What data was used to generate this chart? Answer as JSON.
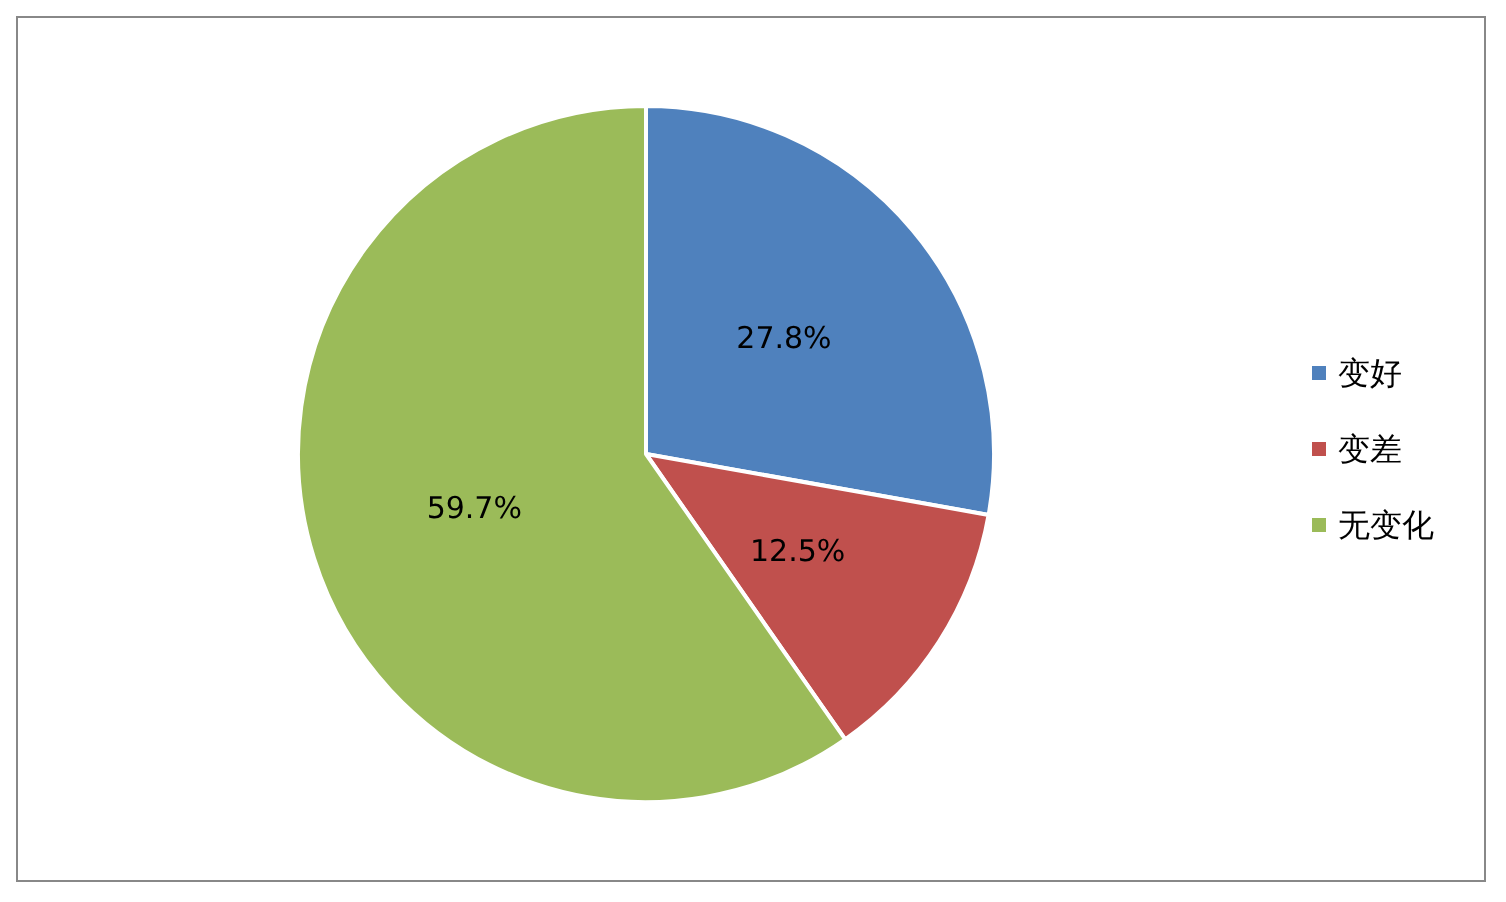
{
  "chart_data": {
    "type": "pie",
    "categories": [
      "变好",
      "变差",
      "无变化"
    ],
    "values": [
      27.8,
      12.5,
      59.7
    ],
    "colors": [
      "#4f81bd",
      "#c0504d",
      "#9bbb59"
    ],
    "value_labels": [
      "27.8%",
      "12.5%",
      "59.7%"
    ],
    "legend": "right"
  }
}
